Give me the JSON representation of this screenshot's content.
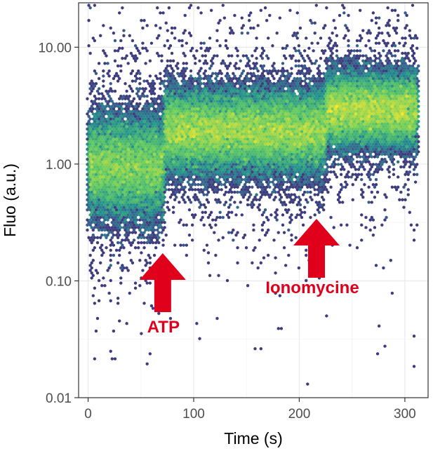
{
  "chart_data": {
    "type": "heatmap",
    "subtype": "hexbin-scatter",
    "xlabel": "Time (s)",
    "ylabel": "Fluo (a.u.)",
    "xlim": [
      -9,
      322
    ],
    "ylim": [
      0.01,
      24
    ],
    "y_scale": "log10",
    "grid": true,
    "legend": "none",
    "x_ticks": [
      0,
      100,
      200,
      300
    ],
    "x_tick_labels": [
      "0",
      "100",
      "200",
      "300"
    ],
    "y_ticks": [
      0.01,
      0.1,
      1,
      10
    ],
    "y_tick_labels": [
      "0.01",
      "0.10",
      "1.00",
      "10.00"
    ],
    "colormap": [
      "#440154",
      "#3b528b",
      "#21918c",
      "#5ec962",
      "#fde725"
    ],
    "point_range_x": [
      0,
      312
    ],
    "phases": [
      {
        "x_start": 0,
        "x_end": 72,
        "median": 0.95,
        "spread_log10": 0.22
      },
      {
        "x_start": 72,
        "x_end": 225,
        "median": 1.9,
        "spread_log10": 0.18
      },
      {
        "x_start": 225,
        "x_end": 312,
        "median": 2.9,
        "spread_log10": 0.16
      }
    ],
    "annotations": [
      {
        "text": "ATP",
        "x": 72,
        "color": "#e0001b"
      },
      {
        "text": "Ionomycine",
        "x": 213,
        "color": "#e0001b"
      }
    ]
  }
}
